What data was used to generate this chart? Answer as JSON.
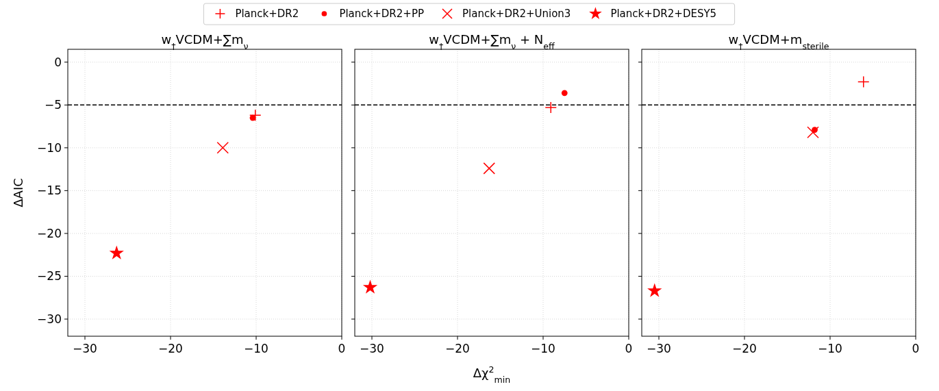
{
  "chart_data": [
    {
      "type": "scatter",
      "title": "w$_{†}$VCDM+∑m$_{ν}$",
      "ylabel": "ΔAIC",
      "xlim": [
        -32,
        0
      ],
      "ylim": [
        -32,
        1.5
      ],
      "xticks": [
        -30,
        -20,
        -10,
        0
      ],
      "yticks": [
        0,
        -5,
        -10,
        -15,
        -20,
        -25,
        -30
      ],
      "grid": true,
      "legend": "top",
      "ref_lines": [
        {
          "axis": "y",
          "value": -5,
          "color": "#000000",
          "line_style": "dashed"
        }
      ],
      "series": [
        {
          "name": "Planck+DR2",
          "color": "#ff0000",
          "marker": "plus",
          "x": [
            -10.1
          ],
          "values": [
            -6.2
          ]
        },
        {
          "name": "Planck+DR2+PP",
          "color": "#ff0000",
          "marker": "circle",
          "x": [
            -10.4
          ],
          "values": [
            -6.5
          ]
        },
        {
          "name": "Planck+DR2+Union3",
          "color": "#ff0000",
          "marker": "cross",
          "x": [
            -13.9
          ],
          "values": [
            -10.0
          ]
        },
        {
          "name": "Planck+DR2+DESY5",
          "color": "#ff0000",
          "marker": "star",
          "x": [
            -26.3
          ],
          "values": [
            -22.3
          ]
        }
      ]
    },
    {
      "type": "scatter",
      "title": "w$_{†}$VCDM+∑m$_{ν}$ + N$_{eff}$",
      "xlabel": "Δχ$^{2}$$_{min}$",
      "xlim": [
        -32,
        0
      ],
      "ylim": [
        -32,
        1.5
      ],
      "xticks": [
        -30,
        -20,
        -10,
        0
      ],
      "yticks": [
        0,
        -5,
        -10,
        -15,
        -20,
        -25,
        -30
      ],
      "grid": true,
      "tick_labels": "x",
      "ref_lines": [
        {
          "axis": "y",
          "value": -5,
          "color": "#000000",
          "line_style": "dashed"
        }
      ],
      "series": [
        {
          "color": "#ff0000",
          "marker": "plus",
          "x": [
            -9.1
          ],
          "values": [
            -5.3
          ]
        },
        {
          "color": "#ff0000",
          "marker": "circle",
          "x": [
            -7.5
          ],
          "values": [
            -3.6
          ]
        },
        {
          "color": "#ff0000",
          "marker": "cross",
          "x": [
            -16.3
          ],
          "values": [
            -12.4
          ]
        },
        {
          "color": "#ff0000",
          "marker": "star",
          "x": [
            -30.2
          ],
          "values": [
            -26.3
          ]
        }
      ]
    },
    {
      "type": "scatter",
      "title": "w$_{†}$VCDM+m$_{sterile}$",
      "xlim": [
        -32,
        0
      ],
      "ylim": [
        -32,
        1.5
      ],
      "xticks": [
        -30,
        -20,
        -10,
        0
      ],
      "yticks": [
        0,
        -5,
        -10,
        -15,
        -20,
        -25,
        -30
      ],
      "grid": true,
      "tick_labels": "x",
      "ref_lines": [
        {
          "axis": "y",
          "value": -5,
          "color": "#000000",
          "line_style": "dashed"
        }
      ],
      "series": [
        {
          "color": "#ff0000",
          "marker": "plus",
          "x": [
            -6.1
          ],
          "values": [
            -2.3
          ]
        },
        {
          "color": "#ff0000",
          "marker": "circle",
          "x": [
            -11.8
          ],
          "values": [
            -7.9
          ]
        },
        {
          "color": "#ff0000",
          "marker": "cross",
          "x": [
            -12.0
          ],
          "values": [
            -8.2
          ]
        },
        {
          "color": "#ff0000",
          "marker": "star",
          "x": [
            -30.5
          ],
          "values": [
            -26.7
          ]
        }
      ]
    }
  ]
}
